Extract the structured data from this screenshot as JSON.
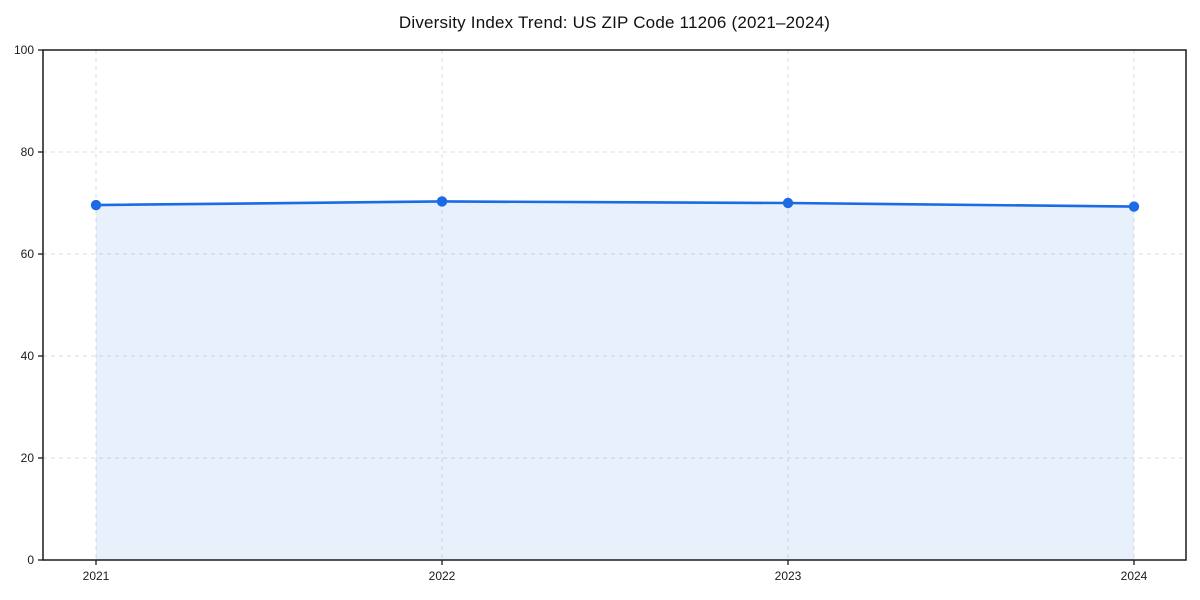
{
  "chart_data": {
    "type": "area",
    "title": "Diversity Index Trend: US ZIP Code 11206 (2021–2024)",
    "categories": [
      "2021",
      "2022",
      "2023",
      "2024"
    ],
    "values": [
      69.6,
      70.3,
      70.0,
      69.3
    ],
    "series_name": "Diversity Index",
    "xlabel": "",
    "ylabel": "",
    "ylim": [
      0,
      100
    ],
    "yticks": [
      0,
      20,
      40,
      60,
      80,
      100
    ],
    "grid": true,
    "grid_style": "dashed",
    "legend": false,
    "marker": "circle",
    "colors": {
      "line": "#1b6be4",
      "fill_rgba": "rgba(27,107,228,0.10)",
      "grid": "#dedede",
      "axis": "#1a1a1a",
      "text": "#1a1a1a",
      "background": "#ffffff",
      "title_text": "#111111"
    }
  }
}
